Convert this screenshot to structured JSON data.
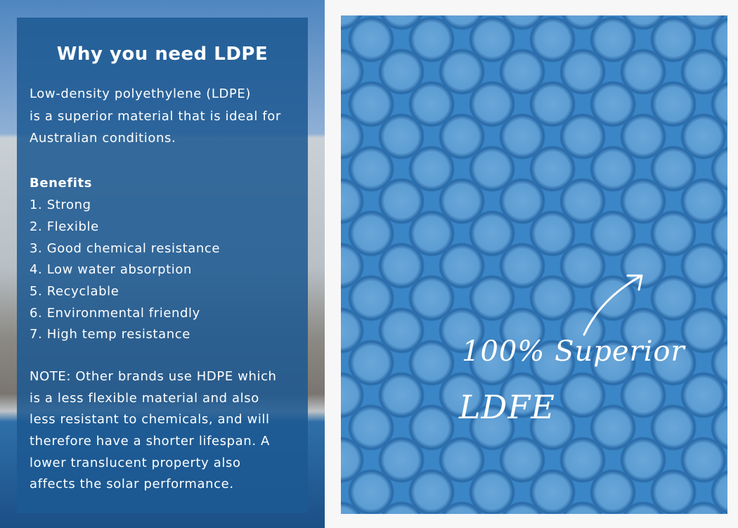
{
  "panel": {
    "title": "Why you need LDPE",
    "intro": [
      "Low-density polyethylene (LDPE)",
      "is a superior material that is ideal for",
      "Australian conditions."
    ],
    "benefits_heading": "Benefits",
    "benefits": [
      "1. Strong",
      "2. Flexible",
      "3. Good chemical resistance",
      "4. Low water absorption",
      "5. Recyclable",
      "6. Environmental friendly",
      "7. High temp resistance"
    ],
    "note": [
      "NOTE: Other brands use HDPE which",
      "is a less flexible material and also",
      "less resistant to chemicals, and will",
      "therefore have a shorter lifespan. A",
      "lower translucent property also",
      "affects the solar performance."
    ]
  },
  "image": {
    "caption_line1": "100% Superior",
    "caption_line2": "LDFE",
    "arrow_icon": "arrow-up-right-icon"
  }
}
